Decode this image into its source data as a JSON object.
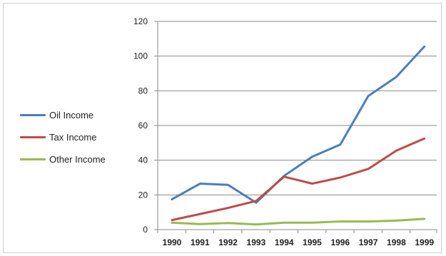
{
  "chart_data": {
    "type": "line",
    "title": "",
    "xlabel": "",
    "ylabel": "",
    "x": [
      "1990",
      "1991",
      "1992",
      "1993",
      "1994",
      "1995",
      "1996",
      "1997",
      "1998",
      "1999"
    ],
    "ylim": [
      0,
      120
    ],
    "yticks": [
      0,
      20,
      40,
      60,
      80,
      100,
      120
    ],
    "grid": true,
    "legend_position": "left",
    "series": [
      {
        "name": "Oil Income",
        "color": "#4a7ebb",
        "values": [
          17.5,
          26.5,
          25.8,
          15.5,
          31,
          42,
          49,
          77,
          88,
          105.5
        ]
      },
      {
        "name": "Tax Income",
        "color": "#be4b48",
        "values": [
          5.5,
          9,
          12.5,
          16.5,
          30.5,
          26.5,
          30,
          35,
          45.5,
          52.5
        ]
      },
      {
        "name": "Other Income",
        "color": "#98b954",
        "values": [
          4,
          3.2,
          3.8,
          3,
          4,
          4,
          4.7,
          4.7,
          5.2,
          6.2
        ]
      }
    ]
  }
}
